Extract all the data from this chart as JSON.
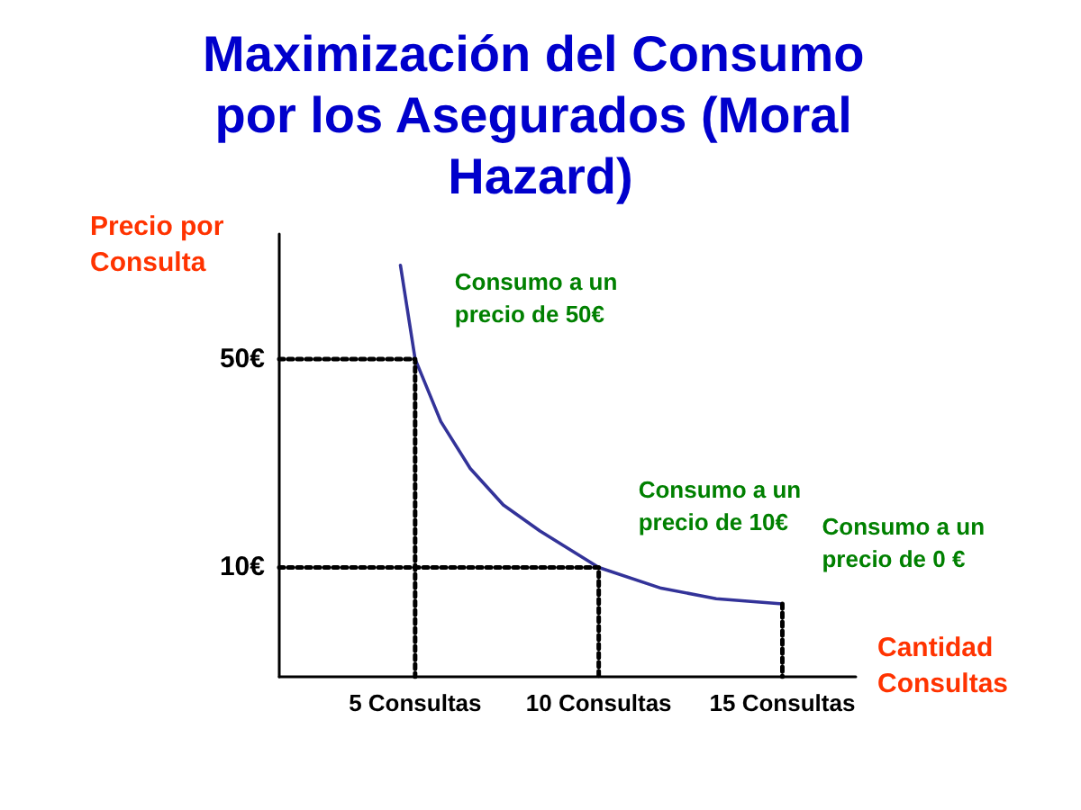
{
  "chart_data": {
    "type": "line",
    "title": "Maximización del Consumo por los Asegurados (Moral Hazard)",
    "xlabel": "Cantidad Consultas",
    "ylabel": "Precio por Consulta",
    "xlim": [
      1.3,
      17
    ],
    "xticks": [
      {
        "value": 5,
        "label": "5 Consultas"
      },
      {
        "value": 10,
        "label": "10 Consultas"
      },
      {
        "value": 15,
        "label": "15 Consultas"
      }
    ],
    "ylim": [
      -11,
      74
    ],
    "yticks": [
      {
        "value": 10,
        "label": "10€"
      },
      {
        "value": 50,
        "label": "50€"
      }
    ],
    "marker": "none",
    "series": [
      {
        "color": "#333399",
        "line_style": "solid",
        "x": [
          4.6,
          5,
          5.7,
          6.5,
          7.4,
          8.4,
          10,
          11.7,
          13.2,
          15
        ],
        "values": [
          68,
          50,
          38,
          29,
          22,
          17,
          10,
          6,
          4,
          3
        ]
      },
      {
        "type": "line",
        "color": "#000000",
        "line_style": "dotted",
        "x": [
          1.3,
          5,
          5
        ],
        "values": [
          50,
          50,
          -11
        ]
      },
      {
        "type": "line",
        "color": "#000000",
        "line_style": "dotted",
        "x": [
          1.3,
          10,
          10
        ],
        "values": [
          10,
          10,
          -11
        ]
      },
      {
        "type": "line",
        "color": "#000000",
        "line_style": "dotted",
        "x": [
          15,
          15
        ],
        "values": [
          3,
          -11
        ]
      }
    ],
    "annotations": [
      {
        "text": "Consumo a un precio de 50€",
        "x": 5,
        "y": 50
      },
      {
        "text": "Consumo a un precio de 10€",
        "x": 10,
        "y": 10
      },
      {
        "text": "Consumo a un precio de 0 €",
        "x": 15,
        "y": 3
      }
    ]
  }
}
